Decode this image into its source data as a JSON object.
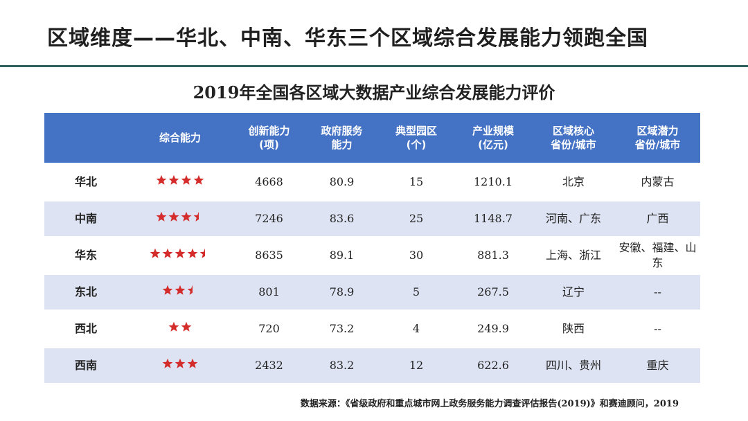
{
  "slide_title": "区域维度——华北、中南、华东三个区域综合发展能力领跑全国",
  "table_title": "2019年全国各区域大数据产业综合发展能力评价",
  "star_color": "#d42b2b",
  "header_color": "#4472c4",
  "headers": [
    {
      "line1": "",
      "line2": ""
    },
    {
      "line1": "综合能力",
      "line2": ""
    },
    {
      "line1": "创新能力",
      "line2": "(项)"
    },
    {
      "line1": "政府服务",
      "line2": "能力"
    },
    {
      "line1": "典型园区",
      "line2": "(个)"
    },
    {
      "line1": "产业规模",
      "line2": "(亿元)"
    },
    {
      "line1": "区域核心",
      "line2": "省份/城市"
    },
    {
      "line1": "区域潜力",
      "line2": "省份/城市"
    }
  ],
  "rows": [
    {
      "region": "华北",
      "rating": 4,
      "innovation": "4668",
      "gov_service": "80.9",
      "parks": "15",
      "scale": "1210.1",
      "core": "北京",
      "potential": "内蒙古"
    },
    {
      "region": "中南",
      "rating": 3.5,
      "innovation": "7246",
      "gov_service": "83.6",
      "parks": "25",
      "scale": "1148.7",
      "core": "河南、广东",
      "potential": "广西"
    },
    {
      "region": "华东",
      "rating": 4.5,
      "innovation": "8635",
      "gov_service": "89.1",
      "parks": "30",
      "scale": "881.3",
      "core": "上海、浙江",
      "potential": "安徽、福建、山东"
    },
    {
      "region": "东北",
      "rating": 2.5,
      "innovation": "801",
      "gov_service": "78.9",
      "parks": "5",
      "scale": "267.5",
      "core": "辽宁",
      "potential": "--"
    },
    {
      "region": "西北",
      "rating": 2,
      "innovation": "720",
      "gov_service": "73.2",
      "parks": "4",
      "scale": "249.9",
      "core": "陕西",
      "potential": "--"
    },
    {
      "region": "西南",
      "rating": 3,
      "innovation": "2432",
      "gov_service": "83.2",
      "parks": "12",
      "scale": "622.6",
      "core": "四川、贵州",
      "potential": "重庆"
    }
  ],
  "source": "数据来源：《省级政府和重点城市网上政务服务能力调查评估报告(2019)》和赛迪顾问，2019"
}
